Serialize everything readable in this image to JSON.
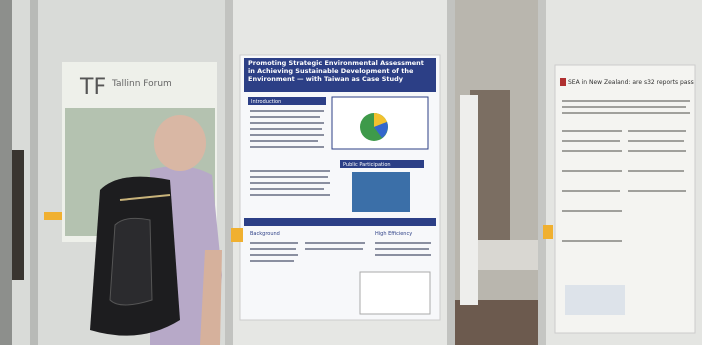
{
  "posters": {
    "left": {
      "logo": "TF",
      "org": "Tallinn Forum"
    },
    "center": {
      "title": "Promoting Strategic Environmental Assessment in Achieving Sustainable Development of the Environment — with Taiwan as Case Study",
      "sections": [
        "Introduction",
        "Public Participation",
        "Background",
        "High Efficiency"
      ]
    },
    "right": {
      "title": "SEA in New Zealand: are s32 reports pass"
    }
  }
}
